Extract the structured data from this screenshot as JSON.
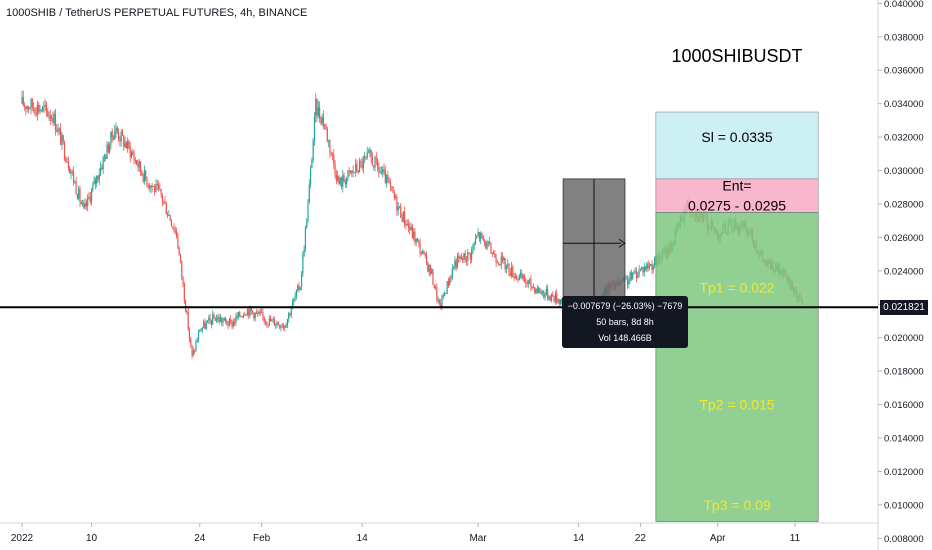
{
  "header": {
    "symbol_title": "1000SHIB / TetherUS PERPETUAL FUTURES, 4h, BINANCE"
  },
  "chart_data": {
    "type": "candlestick",
    "title": "1000SHIBUSDT",
    "y_axis": {
      "ylim": [
        0.0073,
        0.0402
      ],
      "ticks": [
        "0.038000",
        "0.036000",
        "0.034000",
        "0.032000",
        "0.030000",
        "0.028000",
        "0.026000",
        "0.024000",
        "0.022000",
        "0.020000",
        "0.018000",
        "0.016000",
        "0.014000",
        "0.012000",
        "0.010000",
        "0.008000"
      ],
      "partial_top_tick": "0.040000"
    },
    "x_axis": {
      "labels": [
        {
          "text": "2022",
          "date": "2022-01-01"
        },
        {
          "text": "10",
          "date": "2022-01-10"
        },
        {
          "text": "24",
          "date": "2022-01-24"
        },
        {
          "text": "Feb",
          "date": "2022-02-01"
        },
        {
          "text": "14",
          "date": "2022-02-14"
        },
        {
          "text": "Mar",
          "date": "2022-03-01"
        },
        {
          "text": "14",
          "date": "2022-03-14"
        },
        {
          "text": "22",
          "date": "2022-03-22"
        },
        {
          "text": "Apr",
          "date": "2022-04-01"
        },
        {
          "text": "11",
          "date": "2022-04-11"
        }
      ]
    },
    "price_path": [
      [
        "2022-01-01",
        0.034
      ],
      [
        "2022-01-03",
        0.0338
      ],
      [
        "2022-01-05",
        0.0333
      ],
      [
        "2022-01-07",
        0.0305
      ],
      [
        "2022-01-09",
        0.0275
      ],
      [
        "2022-01-11",
        0.03
      ],
      [
        "2022-01-13",
        0.0325
      ],
      [
        "2022-01-15",
        0.0312
      ],
      [
        "2022-01-17",
        0.0295
      ],
      [
        "2022-01-19",
        0.0285
      ],
      [
        "2022-01-21",
        0.0262
      ],
      [
        "2022-01-22",
        0.0225
      ],
      [
        "2022-01-23",
        0.0188
      ],
      [
        "2022-01-24",
        0.0205
      ],
      [
        "2022-01-26",
        0.0212
      ],
      [
        "2022-01-28",
        0.0208
      ],
      [
        "2022-01-30",
        0.0217
      ],
      [
        "2022-02-02",
        0.021
      ],
      [
        "2022-02-04",
        0.0208
      ],
      [
        "2022-02-06",
        0.0232
      ],
      [
        "2022-02-07",
        0.028
      ],
      [
        "2022-02-08",
        0.0338
      ],
      [
        "2022-02-09",
        0.033
      ],
      [
        "2022-02-11",
        0.0292
      ],
      [
        "2022-02-13",
        0.03
      ],
      [
        "2022-02-15",
        0.0308
      ],
      [
        "2022-02-17",
        0.0295
      ],
      [
        "2022-02-19",
        0.0275
      ],
      [
        "2022-02-21",
        0.0258
      ],
      [
        "2022-02-23",
        0.0238
      ],
      [
        "2022-02-24",
        0.0218
      ],
      [
        "2022-02-26",
        0.0245
      ],
      [
        "2022-02-28",
        0.025
      ],
      [
        "2022-03-01",
        0.0262
      ],
      [
        "2022-03-03",
        0.025
      ],
      [
        "2022-03-06",
        0.0237
      ],
      [
        "2022-03-09",
        0.0228
      ],
      [
        "2022-03-12",
        0.0222
      ],
      [
        "2022-03-14",
        0.0218
      ],
      [
        "2022-03-16",
        0.022
      ],
      [
        "2022-03-18",
        0.023
      ],
      [
        "2022-03-20",
        0.0233
      ],
      [
        "2022-03-22",
        0.0241
      ],
      [
        "2022-03-24",
        0.0245
      ],
      [
        "2022-03-26",
        0.0255
      ],
      [
        "2022-03-28",
        0.028
      ],
      [
        "2022-03-30",
        0.0272
      ],
      [
        "2022-04-01",
        0.0262
      ],
      [
        "2022-04-03",
        0.0268
      ],
      [
        "2022-04-05",
        0.0264
      ],
      [
        "2022-04-07",
        0.0245
      ],
      [
        "2022-04-09",
        0.024
      ],
      [
        "2022-04-11",
        0.0228
      ],
      [
        "2022-04-12",
        0.021821
      ]
    ],
    "colors": {
      "up": "#26a69a",
      "down": "#ef5350",
      "stop_zone": "#c8eef4",
      "entry_zone": "#f7aac4",
      "target_zone": "#7fc77f",
      "target_text": "#f5e72a",
      "support_line": "#000000"
    },
    "horizontal_line": {
      "price": 0.021821,
      "label": "0.021821"
    },
    "zones": {
      "stop": {
        "label": "Sl = 0.0335",
        "from": 0.0295,
        "to": 0.0335
      },
      "entry": {
        "label_line1": "Ent=",
        "label_line2": "0.0275 - 0.0295",
        "from": 0.0275,
        "to": 0.0295
      },
      "targets": {
        "from": 0.009,
        "to": 0.0275,
        "zone_start": "2022-03-24",
        "zone_end": "2022-04-14"
      },
      "tp1": {
        "label": "Tp1 = 0.022",
        "price": 0.023
      },
      "tp2": {
        "label": "Tp2 = 0.015",
        "price": 0.016
      },
      "tp3": {
        "label": "Tp3 = 0.09",
        "price": 0.01
      }
    },
    "measure": {
      "from_date": "2022-03-12",
      "to_date": "2022-03-20",
      "from_price": 0.0295,
      "to_price": 0.0218,
      "line1": "−0.007679 (−26.03%) −7679",
      "line2": "50 bars, 8d 8h",
      "line3": "Vol 148.466B"
    }
  }
}
